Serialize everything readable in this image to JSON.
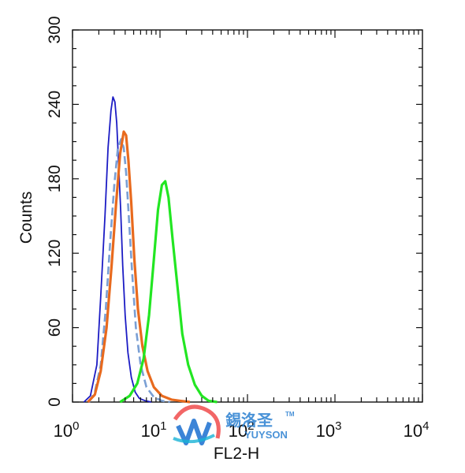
{
  "chart_data": {
    "type": "line",
    "title": "",
    "xlabel": "FL2-H",
    "ylabel": "Counts",
    "xscale": "log",
    "xlim": [
      1,
      10000
    ],
    "ylim": [
      0,
      300
    ],
    "x_ticks": [
      {
        "base": "10",
        "exp": "0",
        "value": 1
      },
      {
        "base": "10",
        "exp": "1",
        "value": 10
      },
      {
        "base": "10",
        "exp": "2",
        "value": 100
      },
      {
        "base": "10",
        "exp": "3",
        "value": 1000
      },
      {
        "base": "10",
        "exp": "4",
        "value": 10000
      }
    ],
    "y_ticks": [
      "0",
      "60",
      "120",
      "180",
      "240",
      "300"
    ],
    "grid": false,
    "series": [
      {
        "color": "#1c1cc4",
        "x": [
          1.35,
          1.6,
          1.9,
          2.1,
          2.35,
          2.55,
          2.75,
          2.9,
          3.05,
          3.2,
          3.35,
          3.55,
          3.75,
          4.0,
          4.3,
          4.7,
          5.2,
          5.8,
          6.8,
          8.0
        ],
        "y": [
          0,
          5,
          30,
          85,
          150,
          205,
          235,
          246,
          242,
          225,
          195,
          155,
          110,
          70,
          40,
          20,
          8,
          3,
          1,
          0
        ]
      },
      {
        "color": "#7a9fd4",
        "x": [
          1.55,
          1.8,
          2.1,
          2.4,
          2.7,
          3.0,
          3.3,
          3.6,
          3.85,
          4.1,
          4.4,
          4.8,
          5.3,
          6.0,
          7.0,
          8.5,
          10.5,
          13.0
        ],
        "y": [
          0,
          8,
          30,
          75,
          130,
          175,
          205,
          212,
          205,
          185,
          150,
          105,
          60,
          30,
          12,
          4,
          1,
          0
        ]
      },
      {
        "color": "#e86a1e",
        "x": [
          1.5,
          1.8,
          2.1,
          2.45,
          2.8,
          3.15,
          3.5,
          3.85,
          4.1,
          4.35,
          4.7,
          5.1,
          5.6,
          6.3,
          7.2,
          8.5,
          10.5,
          13.5,
          17.0,
          22.0
        ],
        "y": [
          0,
          6,
          25,
          60,
          110,
          160,
          200,
          218,
          215,
          195,
          160,
          115,
          75,
          45,
          25,
          12,
          5,
          2,
          1,
          0
        ]
      },
      {
        "color": "#22e622",
        "x": [
          3.5,
          4.5,
          5.5,
          6.5,
          7.5,
          8.5,
          9.5,
          10.5,
          11.5,
          12.5,
          14.0,
          16.0,
          18.0,
          21.0,
          25.0,
          30.0,
          36.0,
          45.0
        ],
        "y": [
          0,
          5,
          15,
          35,
          70,
          115,
          155,
          175,
          178,
          165,
          130,
          90,
          55,
          30,
          14,
          5,
          1,
          0
        ]
      }
    ]
  },
  "watermark": {
    "cn_text": "錫洛圣",
    "tm": "TM",
    "en_text": "YUYSON"
  }
}
